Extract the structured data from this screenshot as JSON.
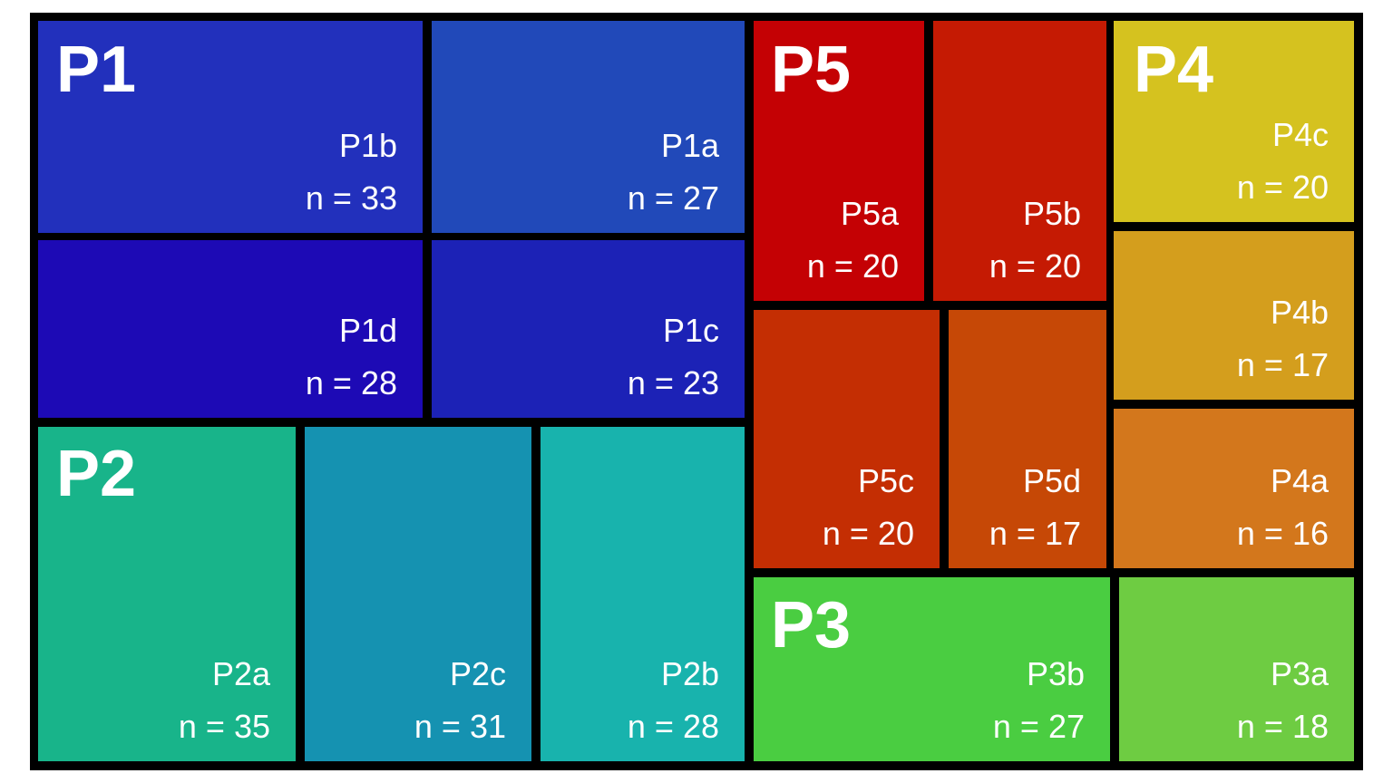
{
  "chart_data": {
    "type": "treemap",
    "groups": [
      {
        "name": "P1",
        "leaves": [
          {
            "name": "P1b",
            "n_label": "n = 33",
            "value": 33,
            "color": "#2230bc"
          },
          {
            "name": "P1a",
            "n_label": "n = 27",
            "value": 27,
            "color": "#2149b9"
          },
          {
            "name": "P1d",
            "n_label": "n = 28",
            "value": 28,
            "color": "#1d0ab5"
          },
          {
            "name": "P1c",
            "n_label": "n = 23",
            "value": 23,
            "color": "#1c22b6"
          }
        ]
      },
      {
        "name": "P2",
        "leaves": [
          {
            "name": "P2a",
            "n_label": "n = 35",
            "value": 35,
            "color": "#18b48a"
          },
          {
            "name": "P2c",
            "n_label": "n = 31",
            "value": 31,
            "color": "#1592b1"
          },
          {
            "name": "P2b",
            "n_label": "n = 28",
            "value": 28,
            "color": "#18b3ad"
          }
        ]
      },
      {
        "name": "P5",
        "leaves": [
          {
            "name": "P5a",
            "n_label": "n = 20",
            "value": 20,
            "color": "#c40104"
          },
          {
            "name": "P5b",
            "n_label": "n = 20",
            "value": 20,
            "color": "#c51a03"
          },
          {
            "name": "P5c",
            "n_label": "n = 20",
            "value": 20,
            "color": "#c42e03"
          },
          {
            "name": "P5d",
            "n_label": "n = 17",
            "value": 17,
            "color": "#c64806"
          }
        ]
      },
      {
        "name": "P4",
        "leaves": [
          {
            "name": "P4c",
            "n_label": "n = 20",
            "value": 20,
            "color": "#d5c21f"
          },
          {
            "name": "P4b",
            "n_label": "n = 17",
            "value": 17,
            "color": "#d49e1d"
          },
          {
            "name": "P4a",
            "n_label": "n = 16",
            "value": 16,
            "color": "#d3771c"
          }
        ]
      },
      {
        "name": "P3",
        "leaves": [
          {
            "name": "P3b",
            "n_label": "n = 27",
            "value": 27,
            "color": "#4acd41"
          },
          {
            "name": "P3a",
            "n_label": "n = 18",
            "value": 18,
            "color": "#6ecc42"
          }
        ]
      }
    ]
  }
}
